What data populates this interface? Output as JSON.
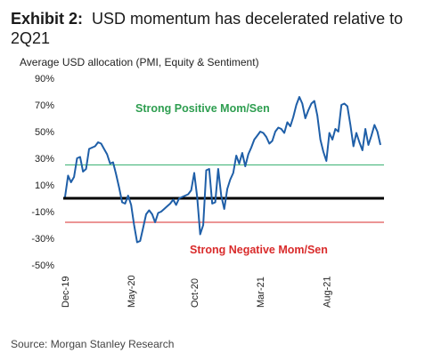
{
  "header": {
    "exhibit": "Exhibit 2:",
    "title": "USD momentum has decelerated relative to 2Q21"
  },
  "footer": {
    "source": "Source: Morgan Stanley Research"
  },
  "colors": {
    "series": "#1f5fa8",
    "positive_threshold": "#3bb273",
    "negative_threshold": "#d92b2b",
    "zero_line": "#000000",
    "positive_label": "#2e9e50",
    "negative_label": "#d92b2b"
  },
  "chart_data": {
    "type": "line",
    "title": "USD momentum has decelerated relative to 2Q21",
    "ylabel": "Average USD allocation (PMI, Equity & Sentiment)",
    "xlabel": "",
    "ylim": [
      -50,
      90
    ],
    "yticks": [
      90,
      70,
      50,
      30,
      10,
      -10,
      -30,
      -50
    ],
    "ytick_labels": [
      "90%",
      "70%",
      "50%",
      "30%",
      "10%",
      "-10%",
      "-30%",
      "-50%"
    ],
    "xtick_labels": [
      "Dec-19",
      "May-20",
      "Oct-20",
      "Mar-21",
      "Aug-21"
    ],
    "xtick_positions": [
      0,
      22,
      43,
      65,
      87
    ],
    "grid": false,
    "annotations": {
      "positive": {
        "text": "Strong Positive Mom/Sen",
        "y": 25
      },
      "negative": {
        "text": "Strong Negative Mom/Sen",
        "y": -18
      },
      "zero": 0
    },
    "series": [
      {
        "x": [
          0,
          1,
          2,
          3,
          4,
          5,
          6,
          7,
          8,
          9,
          10,
          11,
          12,
          13,
          14,
          15,
          16,
          17,
          18,
          19,
          20,
          21,
          22,
          23,
          24,
          25,
          26,
          27,
          28,
          29,
          30,
          31,
          32,
          33,
          34,
          35,
          36,
          37,
          38,
          39,
          40,
          41,
          42,
          43,
          44,
          45,
          46,
          47,
          48,
          49,
          50,
          51,
          52,
          53,
          54,
          55,
          56,
          57,
          58,
          59,
          60,
          61,
          62,
          63,
          64,
          65,
          66,
          67,
          68,
          69,
          70,
          71,
          72,
          73,
          74,
          75,
          76,
          77,
          78,
          79,
          80,
          81,
          82,
          83,
          84,
          85,
          86,
          87,
          88,
          89,
          90,
          91,
          92,
          93,
          94,
          95,
          96,
          97,
          98,
          99,
          100,
          101,
          102,
          103,
          104,
          105
        ],
        "values": [
          1,
          17,
          12,
          16,
          30,
          31,
          20,
          22,
          37,
          38,
          39,
          42,
          41,
          37,
          33,
          26,
          27,
          18,
          8,
          -3,
          -4,
          2,
          -5,
          -20,
          -33,
          -32,
          -22,
          -12,
          -9,
          -12,
          -18,
          -11,
          -10,
          -8,
          -6,
          -4,
          -1,
          -5,
          0,
          1,
          2,
          3,
          6,
          19,
          1,
          -27,
          -20,
          21,
          22,
          -4,
          -3,
          22,
          2,
          -8,
          7,
          14,
          19,
          32,
          26,
          34,
          24,
          33,
          38,
          44,
          47,
          50,
          49,
          46,
          41,
          43,
          50,
          53,
          52,
          49,
          57,
          54,
          61,
          70,
          76,
          71,
          60,
          66,
          71,
          73,
          62,
          44,
          35,
          28,
          49,
          44,
          52,
          50,
          70,
          71,
          69,
          55,
          39,
          49,
          42,
          36,
          52,
          40,
          47,
          55,
          50,
          40
        ],
        "values_note": ""
      }
    ]
  }
}
